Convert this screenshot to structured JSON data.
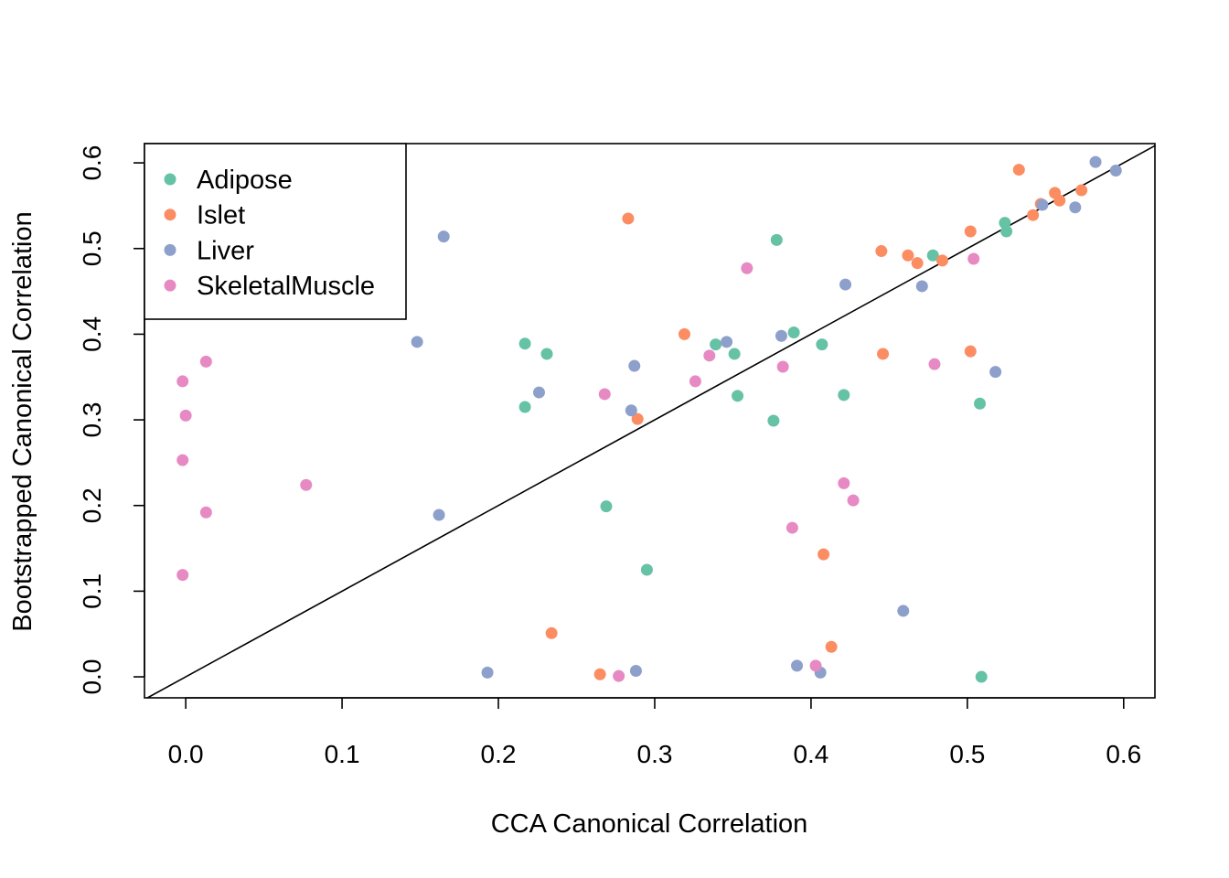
{
  "chart_data": {
    "type": "scatter",
    "title": "",
    "xlabel": "CCA Canonical Correlation",
    "ylabel": "Bootstrapped Canonical Correlation",
    "xlim": [
      -0.0264,
      0.62
    ],
    "ylim": [
      -0.0245,
      0.6225
    ],
    "x_ticks": [
      "0.0",
      "0.1",
      "0.2",
      "0.3",
      "0.4",
      "0.5",
      "0.6"
    ],
    "y_ticks": [
      "0.0",
      "0.1",
      "0.2",
      "0.3",
      "0.4",
      "0.5",
      "0.6"
    ],
    "reference_line": "y = x",
    "legend_position": "top-left",
    "grid": false,
    "series": [
      {
        "name": "Adipose",
        "color": "#66c2a5",
        "points": [
          [
            0.217,
            0.389
          ],
          [
            0.217,
            0.315
          ],
          [
            0.231,
            0.377
          ],
          [
            0.269,
            0.199
          ],
          [
            0.295,
            0.125
          ],
          [
            0.339,
            0.388
          ],
          [
            0.351,
            0.377
          ],
          [
            0.353,
            0.328
          ],
          [
            0.376,
            0.299
          ],
          [
            0.378,
            0.51
          ],
          [
            0.389,
            0.402
          ],
          [
            0.407,
            0.388
          ],
          [
            0.421,
            0.329
          ],
          [
            0.478,
            0.492
          ],
          [
            0.508,
            0.319
          ],
          [
            0.509,
            0.0
          ],
          [
            0.524,
            0.53
          ],
          [
            0.525,
            0.52
          ]
        ]
      },
      {
        "name": "Islet",
        "color": "#fc8d62",
        "points": [
          [
            0.234,
            0.051
          ],
          [
            0.265,
            0.003
          ],
          [
            0.283,
            0.535
          ],
          [
            0.289,
            0.301
          ],
          [
            0.319,
            0.4
          ],
          [
            0.408,
            0.143
          ],
          [
            0.413,
            0.035
          ],
          [
            0.445,
            0.497
          ],
          [
            0.446,
            0.377
          ],
          [
            0.462,
            0.492
          ],
          [
            0.468,
            0.483
          ],
          [
            0.484,
            0.486
          ],
          [
            0.502,
            0.52
          ],
          [
            0.502,
            0.38
          ],
          [
            0.533,
            0.592
          ],
          [
            0.542,
            0.539
          ],
          [
            0.547,
            0.552
          ],
          [
            0.556,
            0.565
          ],
          [
            0.559,
            0.556
          ],
          [
            0.573,
            0.568
          ]
        ]
      },
      {
        "name": "Liver",
        "color": "#8da0cb",
        "points": [
          [
            0.148,
            0.391
          ],
          [
            0.162,
            0.189
          ],
          [
            0.165,
            0.514
          ],
          [
            0.193,
            0.005
          ],
          [
            0.226,
            0.332
          ],
          [
            0.285,
            0.311
          ],
          [
            0.287,
            0.363
          ],
          [
            0.288,
            0.007
          ],
          [
            0.346,
            0.391
          ],
          [
            0.381,
            0.398
          ],
          [
            0.391,
            0.013
          ],
          [
            0.406,
            0.005
          ],
          [
            0.422,
            0.458
          ],
          [
            0.459,
            0.077
          ],
          [
            0.471,
            0.456
          ],
          [
            0.518,
            0.356
          ],
          [
            0.548,
            0.551
          ],
          [
            0.569,
            0.548
          ],
          [
            0.582,
            0.601
          ],
          [
            0.595,
            0.591
          ]
        ]
      },
      {
        "name": "SkeletalMuscle",
        "color": "#e78ac3",
        "points": [
          [
            -0.002,
            0.345
          ],
          [
            -0.002,
            0.253
          ],
          [
            -0.002,
            0.119
          ],
          [
            0.0,
            0.305
          ],
          [
            0.013,
            0.368
          ],
          [
            0.013,
            0.192
          ],
          [
            0.077,
            0.224
          ],
          [
            0.268,
            0.33
          ],
          [
            0.277,
            0.001
          ],
          [
            0.326,
            0.345
          ],
          [
            0.335,
            0.375
          ],
          [
            0.359,
            0.477
          ],
          [
            0.382,
            0.362
          ],
          [
            0.388,
            0.174
          ],
          [
            0.403,
            0.013
          ],
          [
            0.421,
            0.226
          ],
          [
            0.427,
            0.206
          ],
          [
            0.479,
            0.365
          ],
          [
            0.504,
            0.488
          ]
        ]
      }
    ]
  }
}
